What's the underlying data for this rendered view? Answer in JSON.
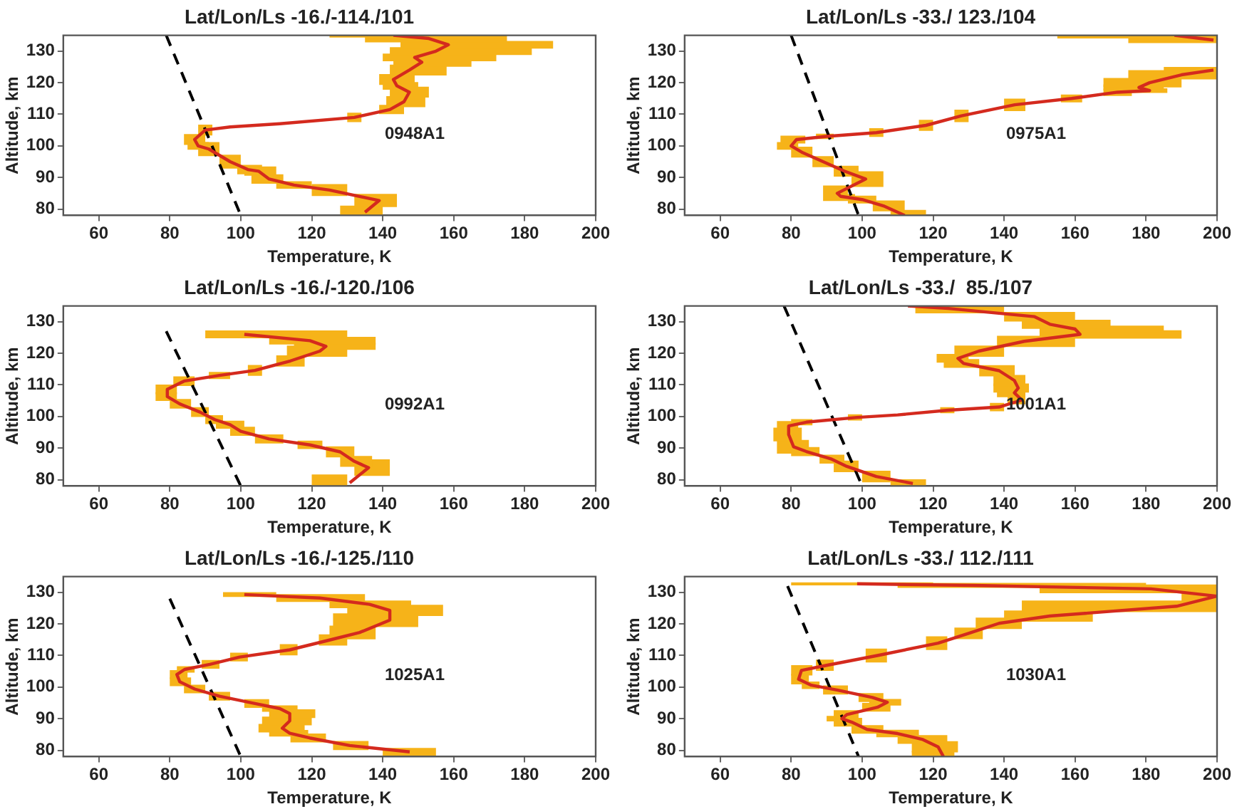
{
  "chart_data": [
    {
      "type": "line",
      "title": "Lat/Lon/Ls -16./-114./101",
      "xlabel": "Temperature, K",
      "ylabel": "Altitude, km",
      "xlim": [
        50,
        200
      ],
      "ylim": [
        78,
        135
      ],
      "xticks": [
        60,
        80,
        100,
        120,
        140,
        160,
        180,
        200
      ],
      "yticks": [
        80,
        90,
        100,
        110,
        120,
        130
      ],
      "annotations": [
        "0948A1"
      ],
      "series": [
        {
          "color": "#d42a1e",
          "x": [
            135,
            139,
            125,
            115,
            108,
            105,
            102,
            97,
            91,
            88,
            87,
            90,
            97,
            111,
            132,
            142,
            146,
            147.5,
            144,
            143,
            147.5,
            151,
            149,
            155,
            158.5,
            153,
            143
          ],
          "values": [
            79,
            82.7,
            86,
            87.6,
            89.5,
            92,
            92.5,
            95,
            99,
            100,
            102,
            105,
            106,
            107,
            109,
            111.5,
            114,
            117,
            119,
            121,
            124,
            126.5,
            128,
            130,
            132,
            134,
            135
          ],
          "xerrors": [
            [
              128,
              140
            ],
            [
              132,
              144
            ],
            [
              120,
              130
            ],
            [
              110,
              120
            ],
            [
              103,
              112
            ],
            [
              101,
              110
            ],
            [
              99,
              106
            ],
            [
              94,
              100
            ],
            [
              88,
              94
            ],
            [
              85,
              91
            ],
            [
              84,
              90
            ],
            [
              88,
              92
            ],
            null,
            null,
            [
              130,
              134
            ],
            [
              139,
              146
            ],
            [
              141,
              152
            ],
            [
              142,
              153
            ],
            [
              140,
              150
            ],
            [
              139,
              149
            ],
            [
              142,
              158
            ],
            [
              143,
              165
            ],
            [
              140,
              172
            ],
            [
              142,
              182
            ],
            [
              145,
              188
            ],
            [
              135,
              175
            ],
            [
              125,
              160
            ]
          ]
        },
        {
          "color": "#000000",
          "line_style": "dashed",
          "x": [
            79,
            100
          ],
          "values": [
            135,
            78
          ]
        }
      ]
    },
    {
      "type": "line",
      "title": "Lat/Lon/Ls -33./ 123./104",
      "xlabel": "Temperature, K",
      "ylabel": "Altitude, km",
      "xlim": [
        50,
        200
      ],
      "ylim": [
        78,
        135
      ],
      "xticks": [
        60,
        80,
        100,
        120,
        140,
        160,
        180,
        200
      ],
      "yticks": [
        80,
        90,
        100,
        110,
        120,
        130
      ],
      "annotations": [
        "0975A1"
      ],
      "series": [
        {
          "color": "#d42a1e",
          "x": [
            112,
            106,
            100,
            94,
            93,
            101,
            95,
            89,
            83,
            80,
            81.5,
            90,
            104,
            118,
            128,
            143,
            159,
            172,
            181,
            178,
            181,
            190,
            199
          ],
          "values": [
            78,
            81,
            83,
            84,
            85,
            89.5,
            92,
            95,
            98,
            100,
            102,
            103,
            104.2,
            106.5,
            109.5,
            113,
            115,
            117,
            117.5,
            118.5,
            120,
            122.5,
            124
          ],
          "xerrors": [
            [
              108,
              118
            ],
            [
              103,
              112
            ],
            [
              96,
              104
            ],
            [
              90,
              98
            ],
            [
              89,
              96
            ],
            [
              97,
              106
            ],
            [
              92,
              99
            ],
            [
              86,
              92
            ],
            [
              80,
              86
            ],
            [
              76,
              82
            ],
            [
              77,
              84
            ],
            [
              87,
              92
            ],
            [
              102,
              106
            ],
            [
              116,
              120
            ],
            [
              126,
              130
            ],
            [
              140,
              146
            ],
            [
              156,
              162
            ],
            [
              168,
              176
            ],
            [
              175,
              186
            ],
            [
              168,
              185
            ],
            [
              168,
              190
            ],
            [
              175,
              200
            ],
            [
              185,
              200
            ]
          ]
        },
        {
          "color": "#d42a1e",
          "x": [
            199,
            188
          ],
          "values": [
            133.5,
            135
          ],
          "xerrors": [
            [
              175,
              200
            ],
            [
              155,
              200
            ]
          ]
        },
        {
          "color": "#000000",
          "line_style": "dashed",
          "x": [
            80,
            99
          ],
          "values": [
            135,
            78
          ]
        }
      ]
    },
    {
      "type": "line",
      "title": "Lat/Lon/Ls -16./-120./106",
      "xlabel": "Temperature, K",
      "ylabel": "Altitude, km",
      "xlim": [
        50,
        200
      ],
      "ylim": [
        78,
        135
      ],
      "xticks": [
        60,
        80,
        100,
        120,
        140,
        160,
        180,
        200
      ],
      "yticks": [
        80,
        90,
        100,
        110,
        120,
        130
      ],
      "annotations": [
        "0992A1"
      ],
      "series": [
        {
          "color": "#d42a1e",
          "x": [
            130.7,
            136,
            132,
            128,
            119.5,
            108,
            100,
            97,
            92.7,
            88.5,
            82.8,
            79.3,
            79.3,
            84,
            94,
            104,
            114,
            122.3,
            124,
            119.5,
            101
          ],
          "values": [
            79,
            83.8,
            85.8,
            88.8,
            91,
            92.9,
            95.3,
            97.4,
            99,
            101.4,
            104,
            106.3,
            108.6,
            111.2,
            113,
            114.6,
            117.6,
            120.7,
            122.2,
            124,
            126
          ],
          "xerrors": [
            [
              120,
              130
            ],
            [
              132,
              142
            ],
            [
              128,
              137
            ],
            [
              124,
              132
            ],
            [
              116,
              123
            ],
            [
              104,
              112
            ],
            [
              97,
              104
            ],
            [
              93,
              101
            ],
            [
              90,
              95
            ],
            [
              86,
              91
            ],
            [
              80,
              86
            ],
            [
              76,
              82
            ],
            [
              76,
              82
            ],
            [
              81,
              87
            ],
            [
              91,
              97
            ],
            [
              102,
              106
            ],
            [
              110,
              118
            ],
            [
              113,
              130
            ],
            [
              115,
              138
            ],
            [
              108,
              138
            ],
            [
              90,
              130
            ]
          ]
        },
        {
          "color": "#000000",
          "line_style": "dashed",
          "x": [
            79,
            100
          ],
          "values": [
            127,
            78
          ]
        }
      ]
    },
    {
      "type": "line",
      "title": "Lat/Lon/Ls -33./  85./107",
      "xlabel": "Temperature, K",
      "ylabel": "Altitude, km",
      "xlim": [
        50,
        200
      ],
      "ylim": [
        78,
        135
      ],
      "xticks": [
        60,
        80,
        100,
        120,
        140,
        160,
        180,
        200
      ],
      "yticks": [
        80,
        90,
        100,
        110,
        120,
        130
      ],
      "annotations": [
        "1001A1"
      ],
      "series": [
        {
          "color": "#d42a1e",
          "x": [
            114.3,
            104,
            95.7,
            91.4,
            84.3,
            80.7,
            79.3,
            79.3,
            84.3,
            98.6,
            110,
            124.3,
            138.6,
            145,
            142.9,
            144,
            142.9,
            138.6,
            128.6,
            127,
            132.9,
            145.7,
            161.4,
            160,
            152.9,
            148.6,
            124.3,
            112.9
          ],
          "values": [
            78.8,
            81,
            84.2,
            86.5,
            88.9,
            90.4,
            94.3,
            97,
            98.2,
            99.7,
            100.5,
            102,
            103,
            105.2,
            107.5,
            109,
            111.4,
            114.5,
            116.8,
            118.4,
            120.7,
            123.8,
            126,
            127.7,
            129.2,
            131.6,
            134.2,
            135
          ],
          "xerrors": [
            [
              108,
              118
            ],
            [
              100,
              108
            ],
            [
              92,
              99
            ],
            [
              88,
              95
            ],
            [
              80,
              88
            ],
            [
              76,
              85
            ],
            [
              75,
              83
            ],
            [
              76,
              82
            ],
            [
              80,
              86
            ],
            [
              96,
              100
            ],
            null,
            [
              122,
              126
            ],
            [
              136,
              140
            ],
            [
              141,
              146
            ],
            [
              138,
              146
            ],
            [
              137,
              147
            ],
            [
              137,
              146
            ],
            [
              133,
              143
            ],
            [
              123,
              133
            ],
            [
              121,
              130
            ],
            [
              126,
              140
            ],
            [
              138,
              160
            ],
            [
              150,
              190
            ],
            [
              150,
              185
            ],
            [
              145,
              170
            ],
            [
              140,
              160
            ],
            [
              115,
              140
            ],
            null
          ]
        },
        {
          "color": "#000000",
          "line_style": "dashed",
          "x": [
            78,
            100
          ],
          "values": [
            135,
            78
          ]
        }
      ]
    },
    {
      "type": "line",
      "title": "Lat/Lon/Ls -16./-125./110",
      "xlabel": "Temperature, K",
      "ylabel": "Altitude, km",
      "xlim": [
        50,
        200
      ],
      "ylim": [
        78,
        135
      ],
      "xticks": [
        60,
        80,
        100,
        120,
        140,
        160,
        180,
        200
      ],
      "yticks": [
        80,
        90,
        100,
        110,
        120,
        130
      ],
      "annotations": [
        "1025A1"
      ],
      "series": [
        {
          "color": "#d42a1e",
          "x": [
            147.6,
            130.7,
            119.4,
            113.8,
            111.7,
            113.8,
            113.8,
            111,
            104,
            94,
            87,
            82.8,
            82,
            84.2,
            91.3,
            99.7,
            113.8,
            125,
            133.5,
            142,
            142,
            136.3,
            122.3,
            101
          ],
          "values": [
            79.5,
            81.5,
            83.9,
            85.4,
            87,
            89.3,
            91.6,
            93.2,
            94.8,
            97.1,
            99.4,
            101.7,
            104,
            105.6,
            107.2,
            109.5,
            111.8,
            114.9,
            117.3,
            121.2,
            124.3,
            126.2,
            128.2,
            129.3
          ],
          "xerrors": [
            [
              140,
              155
            ],
            [
              126,
              136
            ],
            [
              114,
              124
            ],
            [
              108,
              119
            ],
            [
              105,
              118
            ],
            [
              106,
              120
            ],
            [
              108,
              121
            ],
            [
              106,
              116
            ],
            [
              101,
              108
            ],
            [
              91,
              97
            ],
            [
              84,
              90
            ],
            [
              80,
              86
            ],
            [
              80,
              85
            ],
            [
              82,
              87
            ],
            [
              89,
              94
            ],
            [
              97,
              102
            ],
            [
              111,
              116
            ],
            [
              122,
              130
            ],
            [
              125,
              138
            ],
            [
              126,
              150
            ],
            [
              130,
              157
            ],
            [
              125,
              148
            ],
            [
              110,
              135
            ],
            [
              95,
              110
            ]
          ]
        },
        {
          "color": "#000000",
          "line_style": "dashed",
          "x": [
            80,
            100
          ],
          "values": [
            128,
            78
          ]
        }
      ]
    },
    {
      "type": "line",
      "title": "Lat/Lon/Ls -33./ 112./111",
      "xlabel": "Temperature, K",
      "ylabel": "Altitude, km",
      "xlim": [
        50,
        200
      ],
      "ylim": [
        78,
        135
      ],
      "xticks": [
        60,
        80,
        100,
        120,
        140,
        160,
        180,
        200
      ],
      "yticks": [
        80,
        90,
        100,
        110,
        120,
        130
      ],
      "annotations": [
        "1030A1"
      ],
      "series": [
        {
          "color": "#d42a1e",
          "x": [
            122.9,
            121.4,
            117.1,
            110,
            101.4,
            97.1,
            94.3,
            95.7,
            104.3,
            107.1,
            102.9,
            92.9,
            85.7,
            82.1,
            82.9,
            90,
            104.3,
            121.4,
            130,
            138.6,
            152.9,
            188.6,
            200,
            181.4,
            131.4,
            98.6
          ],
          "values": [
            78,
            81.1,
            83.4,
            85.3,
            86.6,
            88.9,
            90,
            91.3,
            93.6,
            95.2,
            96.7,
            99.1,
            100.6,
            102.5,
            105.3,
            106.9,
            110,
            113.9,
            117,
            120.2,
            122.5,
            125.6,
            128.8,
            131.1,
            132.2,
            132.7
          ],
          "xerrors": [
            [
              114,
              126
            ],
            [
              114,
              127
            ],
            [
              110,
              124
            ],
            [
              104,
              116
            ],
            [
              97,
              106
            ],
            [
              92,
              100
            ],
            [
              90,
              96
            ],
            [
              92,
              99
            ],
            [
              100,
              108
            ],
            [
              102,
              111
            ],
            [
              99,
              106
            ],
            [
              89,
              96
            ],
            [
              83,
              88
            ],
            [
              80,
              85
            ],
            [
              80,
              86
            ],
            [
              87,
              92
            ],
            [
              101,
              107
            ],
            [
              118,
              124
            ],
            [
              126,
              134
            ],
            [
              132,
              145
            ],
            [
              140,
              165
            ],
            [
              145,
              200
            ],
            [
              190,
              200
            ],
            [
              150,
              200
            ],
            [
              110,
              180
            ],
            [
              80,
              120
            ]
          ]
        },
        {
          "color": "#000000",
          "line_style": "dashed",
          "x": [
            79,
            99
          ],
          "values": [
            132,
            78
          ]
        }
      ]
    }
  ]
}
